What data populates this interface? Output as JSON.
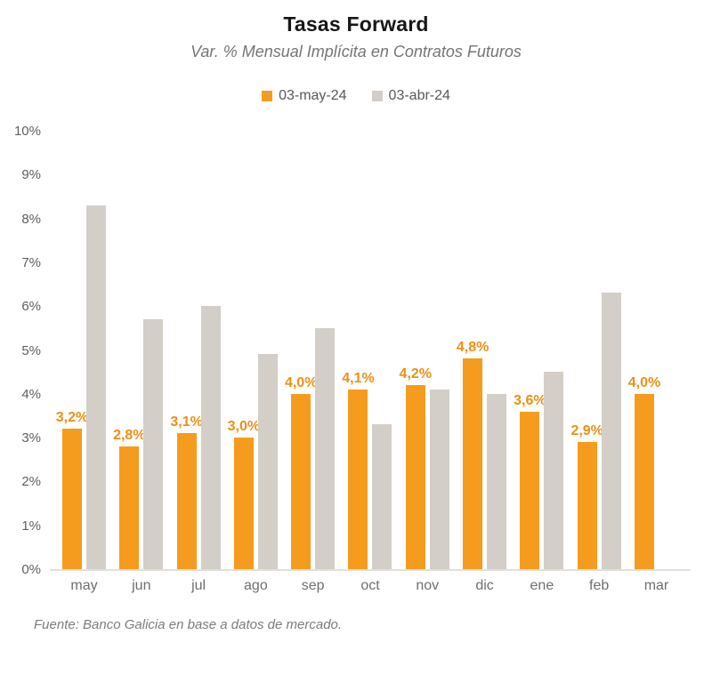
{
  "chart": {
    "title": "Tasas Forward",
    "subtitle": "Var. % Mensual Implícita en Contratos Futuros",
    "source": "Fuente: Banco Galicia en base a datos de mercado.",
    "colors": {
      "series_may": "#f59c1e",
      "series_abr": "#d3cfc8",
      "label_orange": "#ef8f13"
    }
  },
  "chart_data": {
    "type": "bar",
    "title": "Tasas Forward",
    "subtitle": "Var. % Mensual Implícita en Contratos Futuros",
    "categories": [
      "may",
      "jun",
      "jul",
      "ago",
      "sep",
      "oct",
      "nov",
      "dic",
      "ene",
      "feb",
      "mar"
    ],
    "series": [
      {
        "name": "03-may-24",
        "color": "#f59c1e",
        "values": [
          3.2,
          2.8,
          3.1,
          3.0,
          4.0,
          4.1,
          4.2,
          4.8,
          3.6,
          2.9,
          4.0
        ],
        "labels": [
          "3,2%",
          "2,8%",
          "3,1%",
          "3,0%",
          "4,0%",
          "4,1%",
          "4,2%",
          "4,8%",
          "3,6%",
          "2,9%",
          "4,0%"
        ]
      },
      {
        "name": "03-abr-24",
        "color": "#d3cfc8",
        "values": [
          8.3,
          5.7,
          6.0,
          4.9,
          5.5,
          3.3,
          4.1,
          4.0,
          4.5,
          6.3,
          null
        ],
        "labels": null
      }
    ],
    "ylabel": "",
    "xlabel": "",
    "ylim": [
      0,
      10
    ],
    "y_ticks": [
      "0%",
      "1%",
      "2%",
      "3%",
      "4%",
      "5%",
      "6%",
      "7%",
      "8%",
      "9%",
      "10%"
    ],
    "grid": false,
    "legend_position": "top",
    "source": "Fuente: Banco Galicia en base a datos de mercado."
  }
}
